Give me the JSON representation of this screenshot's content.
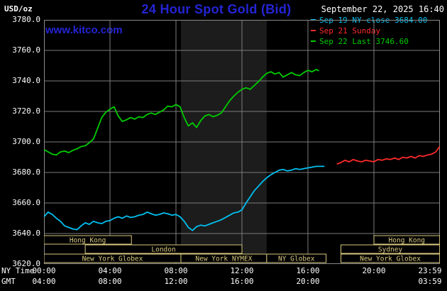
{
  "header": {
    "unit_label": "USD/oz",
    "title": "24 Hour Spot Gold (Bid)",
    "datetime": "September 22, 2025 16:40",
    "watermark": "www.kitco.com"
  },
  "colors": {
    "background": "#000000",
    "title_blue": "#2424d6",
    "grid": "#7d7d7d",
    "border": "#8a8a8a",
    "text": "#ffffff"
  },
  "legend": [
    {
      "label": "Sep 19 NY close 3684.00",
      "color": "#00c0f0"
    },
    {
      "label": "Sep 21 Sunday",
      "color": "#ff2a2a"
    },
    {
      "label": "Sep 22 Last 3746.60",
      "color": "#00cc00"
    }
  ],
  "axes": {
    "row1_label": "NY Time",
    "row2_label": "GMT",
    "y_ticks": [
      {
        "value": 3780,
        "label": "3780.0"
      },
      {
        "value": 3760,
        "label": "3760.0"
      },
      {
        "value": 3740,
        "label": "3740.0"
      },
      {
        "value": 3720,
        "label": "3720.0"
      },
      {
        "value": 3700,
        "label": "3700.0"
      },
      {
        "value": 3680,
        "label": "3680.0"
      },
      {
        "value": 3660,
        "label": "3660.0"
      },
      {
        "value": 3640,
        "label": "3640.0"
      },
      {
        "value": 3620,
        "label": "3620.0"
      }
    ],
    "x_ticks": [
      {
        "hour": 0,
        "ny": "00:00",
        "gmt": "04:00"
      },
      {
        "hour": 4,
        "ny": "04:00",
        "gmt": "08:00"
      },
      {
        "hour": 8,
        "ny": "08:00",
        "gmt": "12:00"
      },
      {
        "hour": 12,
        "ny": "12:00",
        "gmt": "16:00"
      },
      {
        "hour": 16,
        "ny": "16:00",
        "gmt": "20:00"
      },
      {
        "hour": 20,
        "ny": "20:00",
        "gmt": ""
      },
      {
        "hour": 23.983,
        "ny": "23:59",
        "gmt": "03:59"
      }
    ],
    "grid_hours": [
      4,
      8,
      12,
      16,
      20
    ],
    "grid_values": [
      3640,
      3660,
      3680,
      3700,
      3720,
      3740,
      3760
    ]
  },
  "highlight_band": {
    "start": 8.3,
    "end": 13.5,
    "color": "#1c1c1c"
  },
  "sessions": {
    "color": "#d9c97e",
    "rows": [
      {
        "boxes": [
          {
            "label": "Hong Kong",
            "start": 0,
            "end": 5.3
          },
          {
            "label": "Hong Kong",
            "start": 20,
            "end": 23.983
          }
        ]
      },
      {
        "boxes": [
          {
            "label": "London",
            "start": 2.5,
            "end": 12
          },
          {
            "label": "Sydney",
            "start": 18,
            "end": 23.983
          }
        ]
      },
      {
        "boxes": [
          {
            "label": "New York Globex",
            "start": 0,
            "end": 8.3
          },
          {
            "label": "New York NYMEX",
            "start": 8.3,
            "end": 13.5
          },
          {
            "label": "NY Globex",
            "start": 13.5,
            "end": 17.1
          },
          {
            "label": "New York Globex",
            "start": 18,
            "end": 23.983
          }
        ]
      }
    ]
  },
  "chart_data": {
    "type": "line",
    "title": "24 Hour Spot Gold (Bid)",
    "xlabel": "NY Time (hours)",
    "ylabel": "USD/oz",
    "xlim": [
      0,
      24
    ],
    "ylim": [
      3620,
      3780
    ],
    "grid": true,
    "legend_position": "top-right",
    "series": [
      {
        "id": "sep19",
        "name": "Sep 19 NY close 3684.00",
        "color": "#00c0f0",
        "close_value": 3684.0,
        "points": [
          [
            0,
            3651
          ],
          [
            0.25,
            3654
          ],
          [
            0.5,
            3652.5
          ],
          [
            0.75,
            3650
          ],
          [
            1,
            3648
          ],
          [
            1.25,
            3645
          ],
          [
            1.5,
            3644
          ],
          [
            1.75,
            3643
          ],
          [
            2,
            3642.5
          ],
          [
            2.25,
            3645
          ],
          [
            2.5,
            3647
          ],
          [
            2.75,
            3646
          ],
          [
            3,
            3648
          ],
          [
            3.25,
            3647
          ],
          [
            3.5,
            3646.5
          ],
          [
            3.75,
            3648
          ],
          [
            4,
            3648.5
          ],
          [
            4.25,
            3650
          ],
          [
            4.5,
            3651
          ],
          [
            4.75,
            3650
          ],
          [
            5,
            3651.5
          ],
          [
            5.25,
            3650.5
          ],
          [
            5.5,
            3651
          ],
          [
            5.75,
            3652
          ],
          [
            6,
            3652.5
          ],
          [
            6.25,
            3654
          ],
          [
            6.5,
            3653
          ],
          [
            6.75,
            3652
          ],
          [
            7,
            3652.5
          ],
          [
            7.25,
            3653.5
          ],
          [
            7.5,
            3653
          ],
          [
            7.75,
            3652
          ],
          [
            8,
            3652.5
          ],
          [
            8.25,
            3651
          ],
          [
            8.5,
            3648
          ],
          [
            8.75,
            3644
          ],
          [
            9,
            3642
          ],
          [
            9.25,
            3644.5
          ],
          [
            9.5,
            3645.5
          ],
          [
            9.75,
            3645
          ],
          [
            10,
            3646
          ],
          [
            10.25,
            3647
          ],
          [
            10.5,
            3648
          ],
          [
            10.75,
            3649
          ],
          [
            11,
            3650.5
          ],
          [
            11.25,
            3652
          ],
          [
            11.5,
            3653.5
          ],
          [
            11.75,
            3654
          ],
          [
            12,
            3655.5
          ],
          [
            12.25,
            3660
          ],
          [
            12.5,
            3664
          ],
          [
            12.75,
            3668
          ],
          [
            13,
            3671
          ],
          [
            13.25,
            3674
          ],
          [
            13.5,
            3676.5
          ],
          [
            13.75,
            3678.5
          ],
          [
            14,
            3680
          ],
          [
            14.25,
            3681.5
          ],
          [
            14.5,
            3682
          ],
          [
            14.75,
            3681
          ],
          [
            15,
            3681.5
          ],
          [
            15.25,
            3682.5
          ],
          [
            15.5,
            3682
          ],
          [
            15.75,
            3682.5
          ],
          [
            16,
            3683
          ],
          [
            16.25,
            3683.5
          ],
          [
            16.5,
            3684
          ],
          [
            16.75,
            3684
          ],
          [
            17,
            3684
          ]
        ]
      },
      {
        "id": "sep21",
        "name": "Sep 21 Sunday",
        "color": "#ff2a2a",
        "points": [
          [
            17.75,
            3685.5
          ],
          [
            18,
            3686.5
          ],
          [
            18.25,
            3688
          ],
          [
            18.5,
            3687
          ],
          [
            18.75,
            3688.5
          ],
          [
            19,
            3687.5
          ],
          [
            19.25,
            3687
          ],
          [
            19.5,
            3688
          ],
          [
            19.75,
            3687.5
          ],
          [
            20,
            3687
          ],
          [
            20.25,
            3688.5
          ],
          [
            20.5,
            3688
          ],
          [
            20.75,
            3689
          ],
          [
            21,
            3688.5
          ],
          [
            21.25,
            3689.5
          ],
          [
            21.5,
            3688.5
          ],
          [
            21.75,
            3690
          ],
          [
            22,
            3689.5
          ],
          [
            22.25,
            3690.5
          ],
          [
            22.5,
            3689.5
          ],
          [
            22.75,
            3691
          ],
          [
            23,
            3690.5
          ],
          [
            23.25,
            3691.5
          ],
          [
            23.5,
            3692
          ],
          [
            23.75,
            3693.5
          ],
          [
            23.983,
            3697
          ]
        ]
      },
      {
        "id": "sep22",
        "name": "Sep 22 Last 3746.60",
        "color": "#00cc00",
        "last_value": 3746.6,
        "points": [
          [
            0,
            3695
          ],
          [
            0.25,
            3693.5
          ],
          [
            0.5,
            3692
          ],
          [
            0.75,
            3691.5
          ],
          [
            1,
            3693.5
          ],
          [
            1.25,
            3694
          ],
          [
            1.5,
            3693
          ],
          [
            1.75,
            3694.5
          ],
          [
            2,
            3695.5
          ],
          [
            2.25,
            3697
          ],
          [
            2.5,
            3697.5
          ],
          [
            2.75,
            3699.5
          ],
          [
            3,
            3702
          ],
          [
            3.25,
            3709
          ],
          [
            3.5,
            3716
          ],
          [
            3.75,
            3719.5
          ],
          [
            4,
            3721.5
          ],
          [
            4.25,
            3723
          ],
          [
            4.5,
            3717
          ],
          [
            4.75,
            3713.5
          ],
          [
            5,
            3714.5
          ],
          [
            5.25,
            3716
          ],
          [
            5.5,
            3715
          ],
          [
            5.75,
            3716.5
          ],
          [
            6,
            3716
          ],
          [
            6.25,
            3718
          ],
          [
            6.5,
            3719
          ],
          [
            6.75,
            3718
          ],
          [
            7,
            3719.5
          ],
          [
            7.25,
            3721
          ],
          [
            7.5,
            3723.5
          ],
          [
            7.75,
            3723
          ],
          [
            8,
            3724.5
          ],
          [
            8.25,
            3723
          ],
          [
            8.5,
            3716
          ],
          [
            8.75,
            3710.5
          ],
          [
            9,
            3712.5
          ],
          [
            9.25,
            3709.5
          ],
          [
            9.5,
            3714
          ],
          [
            9.75,
            3717
          ],
          [
            10,
            3718
          ],
          [
            10.25,
            3716.5
          ],
          [
            10.5,
            3717.5
          ],
          [
            10.75,
            3719
          ],
          [
            11,
            3723
          ],
          [
            11.25,
            3727
          ],
          [
            11.5,
            3730
          ],
          [
            11.75,
            3732.5
          ],
          [
            12,
            3734.5
          ],
          [
            12.25,
            3735.5
          ],
          [
            12.5,
            3734.5
          ],
          [
            12.75,
            3737
          ],
          [
            13,
            3739.5
          ],
          [
            13.25,
            3742.5
          ],
          [
            13.5,
            3745
          ],
          [
            13.75,
            3746
          ],
          [
            14,
            3744.5
          ],
          [
            14.25,
            3745.5
          ],
          [
            14.5,
            3742.5
          ],
          [
            14.75,
            3744
          ],
          [
            15,
            3745.5
          ],
          [
            15.25,
            3744
          ],
          [
            15.5,
            3743.5
          ],
          [
            15.75,
            3745.5
          ],
          [
            16,
            3747
          ],
          [
            16.25,
            3746
          ],
          [
            16.5,
            3747.5
          ],
          [
            16.67,
            3746.6
          ]
        ]
      }
    ]
  }
}
